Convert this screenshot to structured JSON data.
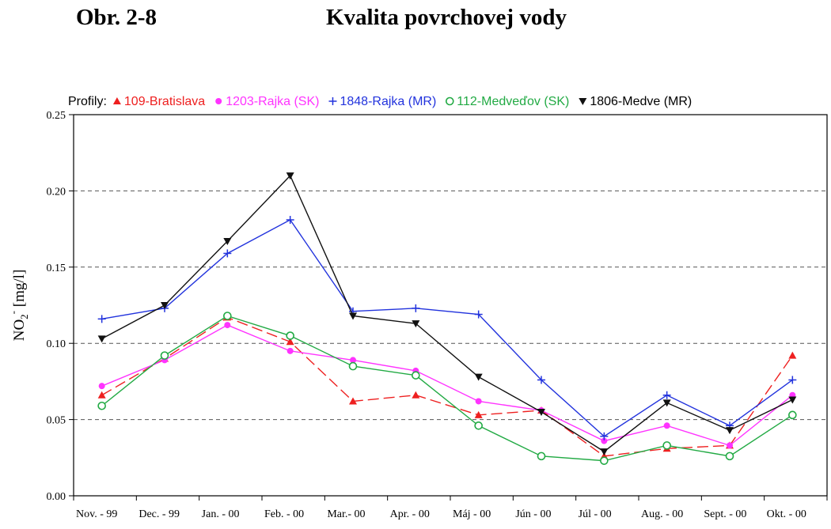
{
  "figure": {
    "label": "Obr. 2-8",
    "title": "Kvalita povrchovej vody"
  },
  "legend": {
    "prefix": "Profily:"
  },
  "chart_data": {
    "type": "line",
    "ylabel": "NO2- [mg/l]",
    "ylim": [
      0,
      0.25
    ],
    "yticks": [
      "0.00",
      "0.05",
      "0.10",
      "0.15",
      "0.20",
      "0.25"
    ],
    "grid": "horizontal dashed at 0.05 intervals",
    "legend_position": "top",
    "categories": [
      "Nov. - 99",
      "Dec. - 99",
      "Jan. - 00",
      "Feb. - 00",
      "Mar.- 00",
      "Apr. - 00",
      "Máj - 00",
      "Jún - 00",
      "Júl - 00",
      "Aug. - 00",
      "Sept. - 00",
      "Okt. - 00"
    ],
    "series": [
      {
        "name": "109-Bratislava",
        "color": "#ee2020",
        "marker": "triangle-up",
        "dashed": true,
        "values": [
          0.066,
          0.09,
          0.117,
          0.101,
          0.062,
          0.066,
          0.053,
          0.056,
          0.026,
          0.031,
          0.033,
          0.092
        ]
      },
      {
        "name": "1203-Rajka (SK)",
        "color": "#ff33ff",
        "marker": "circle-filled",
        "dashed": false,
        "values": [
          0.072,
          0.089,
          0.112,
          0.095,
          0.089,
          0.082,
          0.062,
          0.056,
          0.036,
          0.046,
          0.033,
          0.066
        ]
      },
      {
        "name": "1848-Rajka (MR)",
        "color": "#2233dd",
        "marker": "plus",
        "dashed": false,
        "values": [
          0.116,
          0.123,
          0.159,
          0.181,
          0.121,
          0.123,
          0.119,
          0.076,
          0.039,
          0.066,
          0.046,
          0.076
        ]
      },
      {
        "name": "112-Medveďov (SK)",
        "color": "#22aa44",
        "marker": "circle-open",
        "dashed": false,
        "values": [
          0.059,
          0.092,
          0.118,
          0.105,
          0.085,
          0.079,
          0.046,
          0.026,
          0.023,
          0.033,
          0.026,
          0.053
        ]
      },
      {
        "name": "1806-Medve (MR)",
        "color": "#111111",
        "marker": "triangle-down",
        "dashed": false,
        "values": [
          0.103,
          0.125,
          0.167,
          0.21,
          0.118,
          0.113,
          0.078,
          0.055,
          0.029,
          0.061,
          0.043,
          0.063
        ]
      }
    ]
  }
}
